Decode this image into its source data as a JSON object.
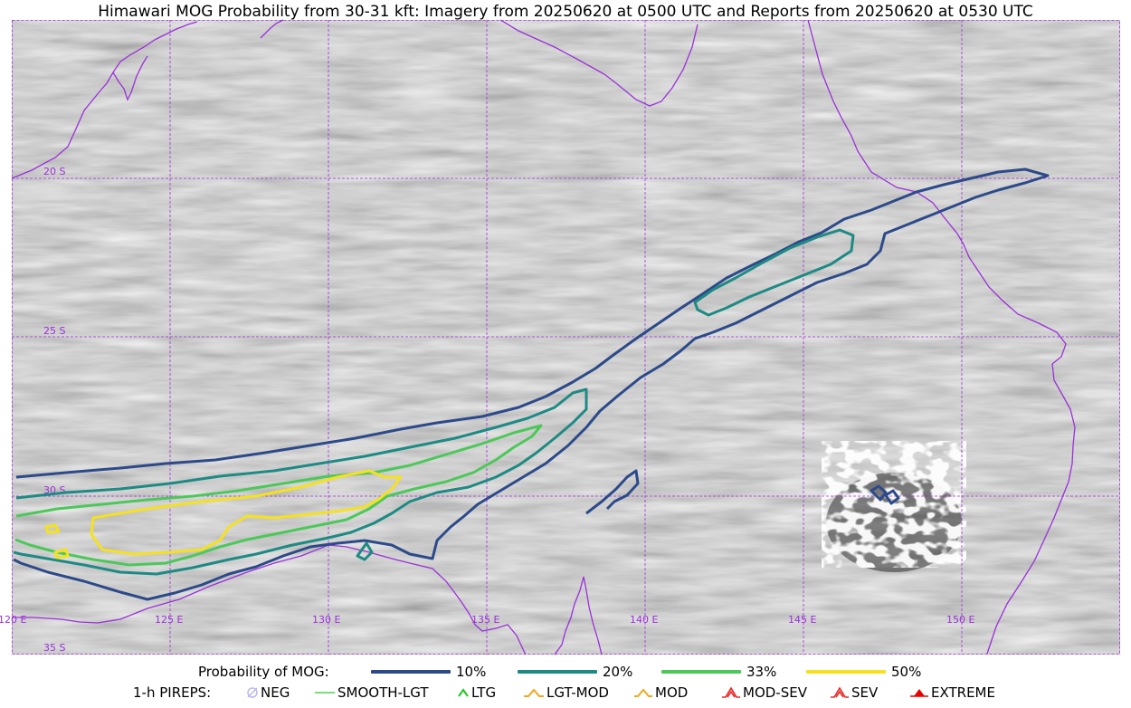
{
  "title": "Himawari MOG Probability from 30-31 kft: Imagery from 20250620 at 0500 UTC and Reports from 20250620 at 0530 UTC",
  "map": {
    "latitude_labels": [
      "20 S",
      "25 S",
      "30 S",
      "35 S"
    ],
    "longitude_labels": [
      "120 E",
      "125 E",
      "130 E",
      "135 E",
      "140 E",
      "145 E",
      "150 E"
    ],
    "gridline_color": "#9b30d9",
    "coastline_color": "#9b30d9",
    "background": "grayscale satellite imagery"
  },
  "probability_legend": {
    "label": "Probability of MOG:",
    "levels": [
      {
        "label": "10%",
        "color": "#2c4a8a"
      },
      {
        "label": "20%",
        "color": "#1e8a84"
      },
      {
        "label": "33%",
        "color": "#4cc85a"
      },
      {
        "label": "50%",
        "color": "#f5e11e"
      }
    ]
  },
  "pirep_legend": {
    "label": "1-h PIREPS:",
    "items": [
      {
        "label": "NEG",
        "icon": "neg-symbol-icon",
        "color": "#b8b8f0"
      },
      {
        "label": "SMOOTH-LGT",
        "icon": "smooth-line-icon",
        "color": "#4cd44c"
      },
      {
        "label": "LTG",
        "icon": "ltg-chevron-icon",
        "color": "#1ec81e"
      },
      {
        "label": "LGT-MOD",
        "icon": "lgt-mod-caret-icon",
        "color": "#f0a81e"
      },
      {
        "label": "MOD",
        "icon": "mod-caret-icon",
        "color": "#f0a81e"
      },
      {
        "label": "MOD-SEV",
        "icon": "mod-sev-caret-icon",
        "color": "#e82828"
      },
      {
        "label": "SEV",
        "icon": "sev-caret-icon",
        "color": "#e82828"
      },
      {
        "label": "EXTREME",
        "icon": "extreme-triangle-icon",
        "color": "#e80000"
      }
    ]
  }
}
